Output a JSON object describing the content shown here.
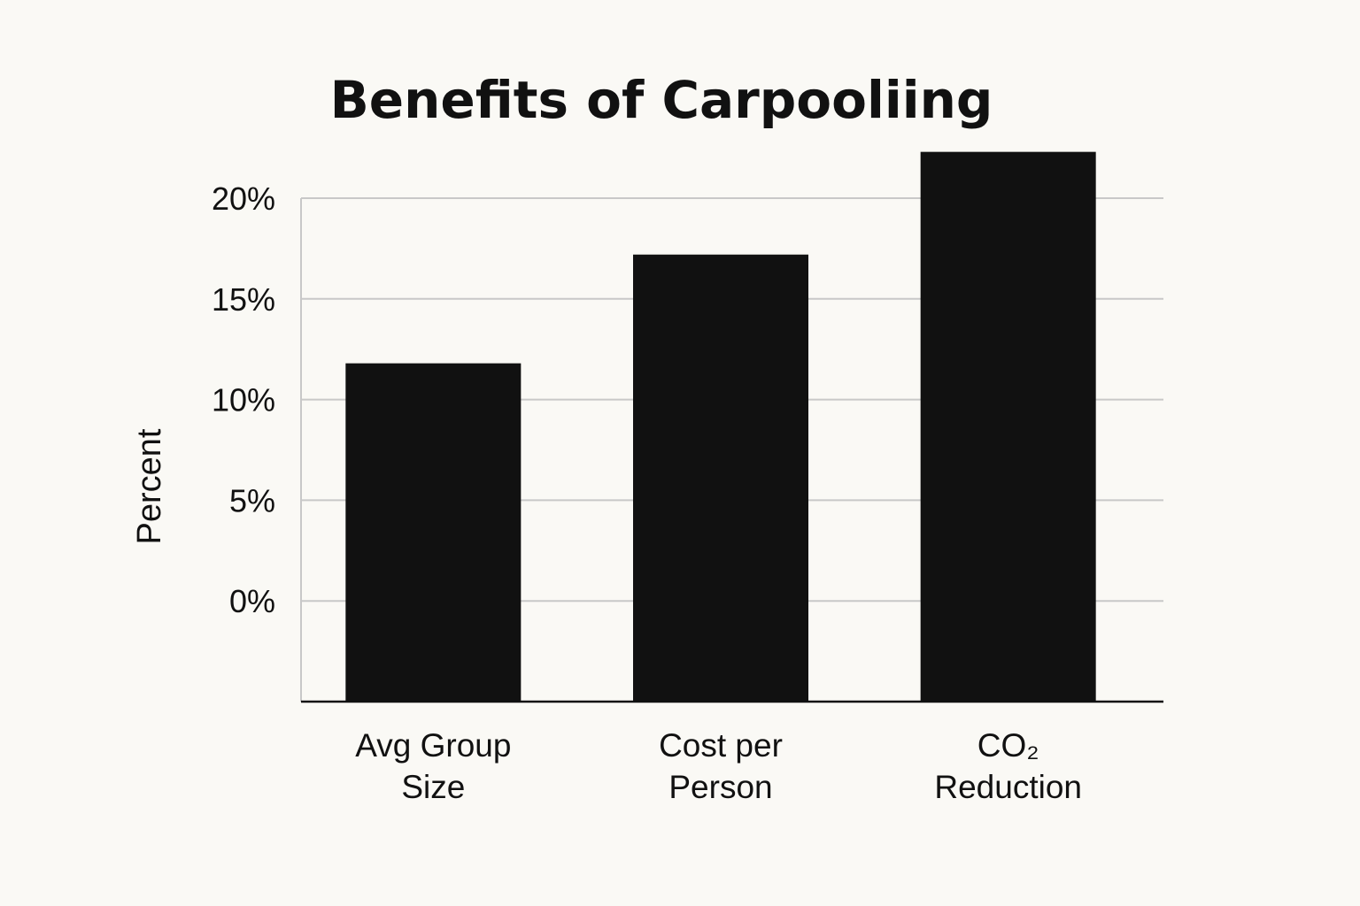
{
  "chart_data": {
    "type": "bar",
    "title": "Benefits of Carpooliing",
    "xlabel": "",
    "ylabel": "Percent",
    "categories": [
      [
        "Avg Group",
        "Size"
      ],
      [
        "Cost per",
        "Person"
      ],
      [
        "CO₂",
        "Reduction"
      ]
    ],
    "values": [
      11.8,
      17.2,
      22.3
    ],
    "ylim": [
      -5,
      20
    ],
    "yticks": [
      0,
      5,
      10,
      15,
      20
    ],
    "ytick_labels": [
      "0%",
      "5%",
      "10%",
      "15%",
      "20%"
    ],
    "grid": true,
    "legend": "none",
    "colors": {
      "bar": "#111111",
      "grid": "#c8c8c8",
      "axis": "#111111",
      "background": "#faf9f5"
    }
  }
}
